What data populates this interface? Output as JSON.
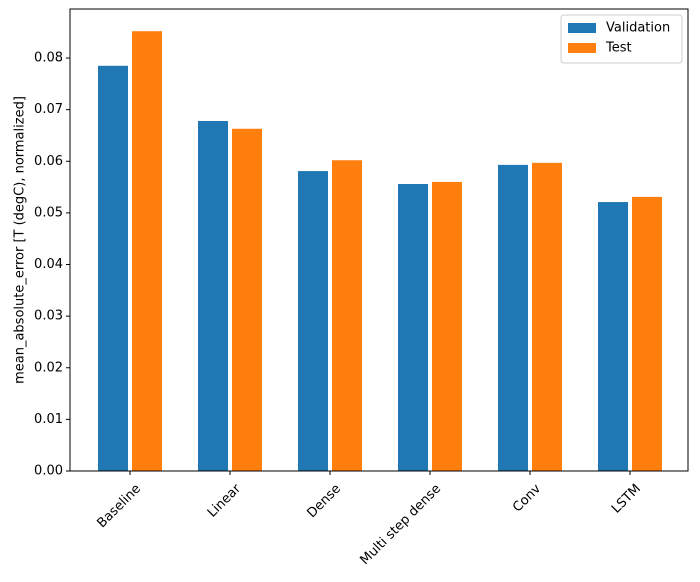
{
  "chart_data": {
    "type": "bar",
    "y_label": "mean_absolute_error [T (degC), normalized]",
    "categories": [
      "Baseline",
      "Linear",
      "Dense",
      "Multi step dense",
      "Conv",
      "LSTM"
    ],
    "series": [
      {
        "name": "Validation",
        "color": "#1f77b4",
        "values": [
          0.0785,
          0.0678,
          0.0581,
          0.0556,
          0.0593,
          0.0521
        ]
      },
      {
        "name": "Test",
        "color": "#ff7f0e",
        "values": [
          0.0852,
          0.0663,
          0.0602,
          0.056,
          0.0597,
          0.0531
        ]
      }
    ],
    "ylim": [
      0,
      0.0895
    ],
    "yticks": [
      {
        "value": 0,
        "label": "0.00"
      },
      {
        "value": 0.01,
        "label": "0.01"
      },
      {
        "value": 0.02,
        "label": "0.02"
      },
      {
        "value": 0.03,
        "label": "0.03"
      },
      {
        "value": 0.04,
        "label": "0.04"
      },
      {
        "value": 0.05,
        "label": "0.05"
      },
      {
        "value": 0.06,
        "label": "0.06"
      },
      {
        "value": 0.07,
        "label": "0.07"
      },
      {
        "value": 0.08,
        "label": "0.08"
      }
    ],
    "legend": "upper right"
  }
}
